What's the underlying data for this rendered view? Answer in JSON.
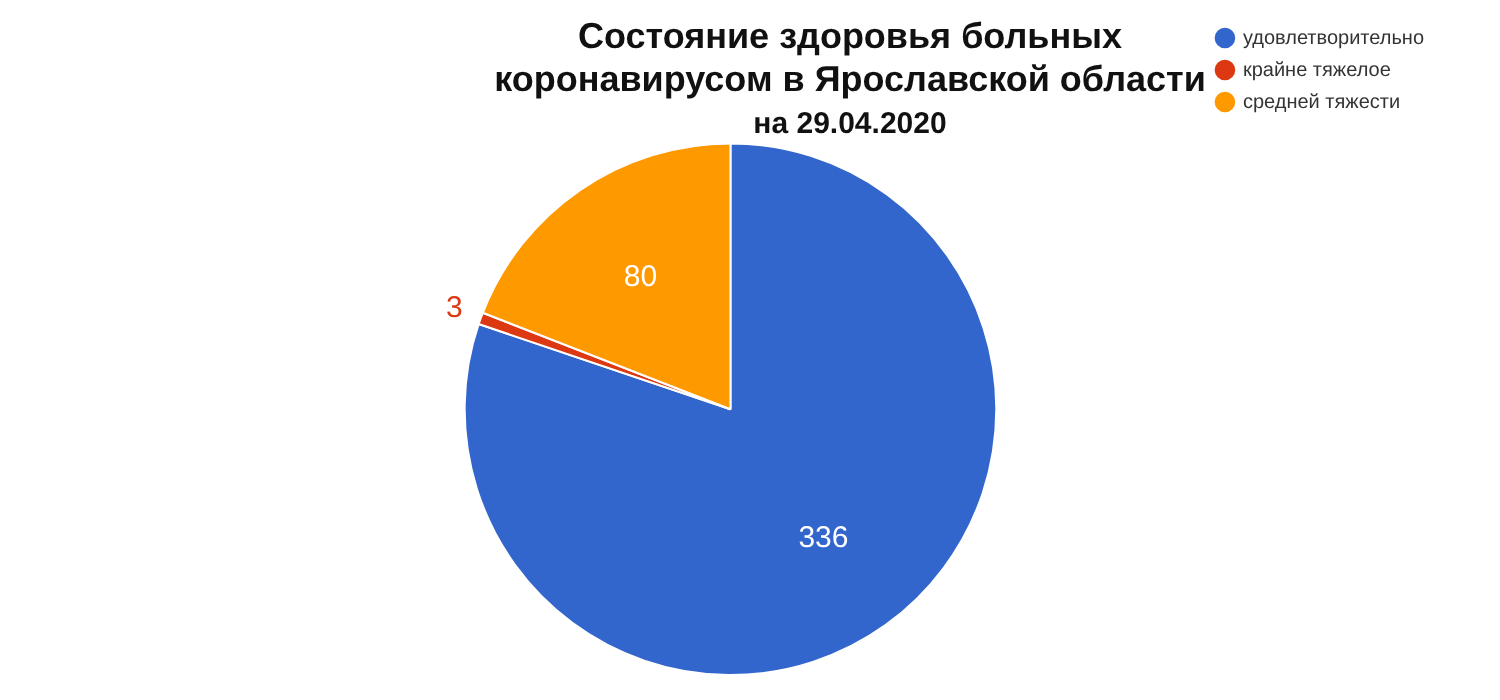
{
  "chart_data": {
    "type": "pie",
    "title": "Состояние здоровья больных коронавирусом в Ярославской области",
    "subtitle": "на 29.04.2020",
    "categories": [
      "удовлетворительно",
      "крайне тяжелое",
      "средней тяжести"
    ],
    "values": [
      336,
      3,
      80
    ],
    "colors": [
      "#3366cc",
      "#dc3912",
      "#ff9900"
    ],
    "data_labels": true,
    "legend": "top right"
  }
}
